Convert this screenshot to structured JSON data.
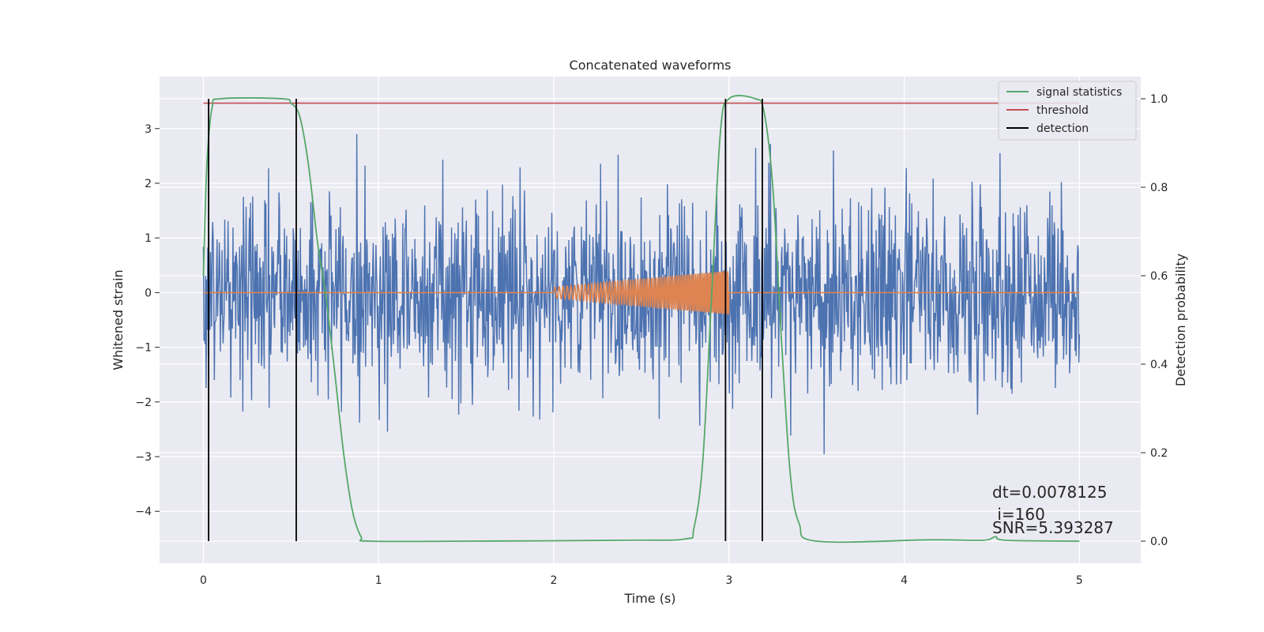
{
  "chart_data": {
    "type": "line",
    "title": "Concatenated waveforms",
    "xlabel": "Time (s)",
    "ylabel": "Whitened strain",
    "y2label": "Detection probability",
    "xlim": [
      -0.25,
      5.35
    ],
    "ylim": [
      -4.95,
      3.95
    ],
    "y2lim": [
      -0.05,
      1.05
    ],
    "x_ticks": [
      0,
      1,
      2,
      3,
      4,
      5
    ],
    "y_ticks": [
      -4,
      -3,
      -2,
      -1,
      0,
      1,
      2,
      3
    ],
    "y2_ticks": [
      0.0,
      0.2,
      0.4,
      0.6,
      0.8,
      1.0
    ],
    "x_tick_labels": [
      "0",
      "1",
      "2",
      "3",
      "4",
      "5"
    ],
    "y_tick_labels": [
      "−4",
      "−3",
      "−2",
      "−1",
      "0",
      "1",
      "2",
      "3"
    ],
    "y2_tick_labels": [
      "0.0",
      "0.2",
      "0.4",
      "0.6",
      "0.8",
      "1.0"
    ],
    "grid": true,
    "legend_position": "top-right",
    "noise_series": {
      "x_range": [
        0,
        5
      ],
      "amplitude_std": 0.9,
      "samples": 1600,
      "color": "#4c72b0"
    },
    "chirp_series": {
      "x_range": [
        2.0,
        3.0
      ],
      "amplitude_range": [
        0.1,
        0.4
      ],
      "frequency_range_hz": [
        40,
        110
      ],
      "color": "#dd8452"
    },
    "signal_statistics": {
      "name": "signal statistics",
      "color": "#55a868",
      "points": [
        [
          0.0,
          0.6
        ],
        [
          0.02,
          0.85
        ],
        [
          0.05,
          0.98
        ],
        [
          0.1,
          1.0
        ],
        [
          0.45,
          1.0
        ],
        [
          0.5,
          0.99
        ],
        [
          0.55,
          0.96
        ],
        [
          0.6,
          0.85
        ],
        [
          0.65,
          0.68
        ],
        [
          0.7,
          0.55
        ],
        [
          0.75,
          0.38
        ],
        [
          0.8,
          0.2
        ],
        [
          0.85,
          0.07
        ],
        [
          0.9,
          0.01
        ],
        [
          0.95,
          0.0
        ],
        [
          1.5,
          0.0
        ],
        [
          2.4,
          0.002
        ],
        [
          2.75,
          0.005
        ],
        [
          2.8,
          0.03
        ],
        [
          2.85,
          0.18
        ],
        [
          2.9,
          0.55
        ],
        [
          2.95,
          0.92
        ],
        [
          3.0,
          1.0
        ],
        [
          3.15,
          1.0
        ],
        [
          3.2,
          0.97
        ],
        [
          3.25,
          0.8
        ],
        [
          3.3,
          0.45
        ],
        [
          3.35,
          0.15
        ],
        [
          3.4,
          0.04
        ],
        [
          3.5,
          0.0
        ],
        [
          4.15,
          0.003
        ],
        [
          4.45,
          0.002
        ],
        [
          4.52,
          0.01
        ],
        [
          4.58,
          0.002
        ],
        [
          5.0,
          0.0
        ]
      ]
    },
    "threshold": {
      "name": "threshold",
      "value": 0.99,
      "x_range": [
        0,
        5
      ],
      "color": "#c44e52"
    },
    "detection": {
      "name": "detection",
      "x": [
        0.03,
        0.53,
        2.98,
        3.19
      ],
      "y2_range": [
        0.0,
        1.0
      ],
      "color": "#000000"
    },
    "annotations": [
      "dt=0.0078125",
      " i=160",
      "SNR=5.393287"
    ],
    "style": {
      "plot_bg": "#eaeaf2",
      "grid_color": "#ffffff"
    }
  }
}
